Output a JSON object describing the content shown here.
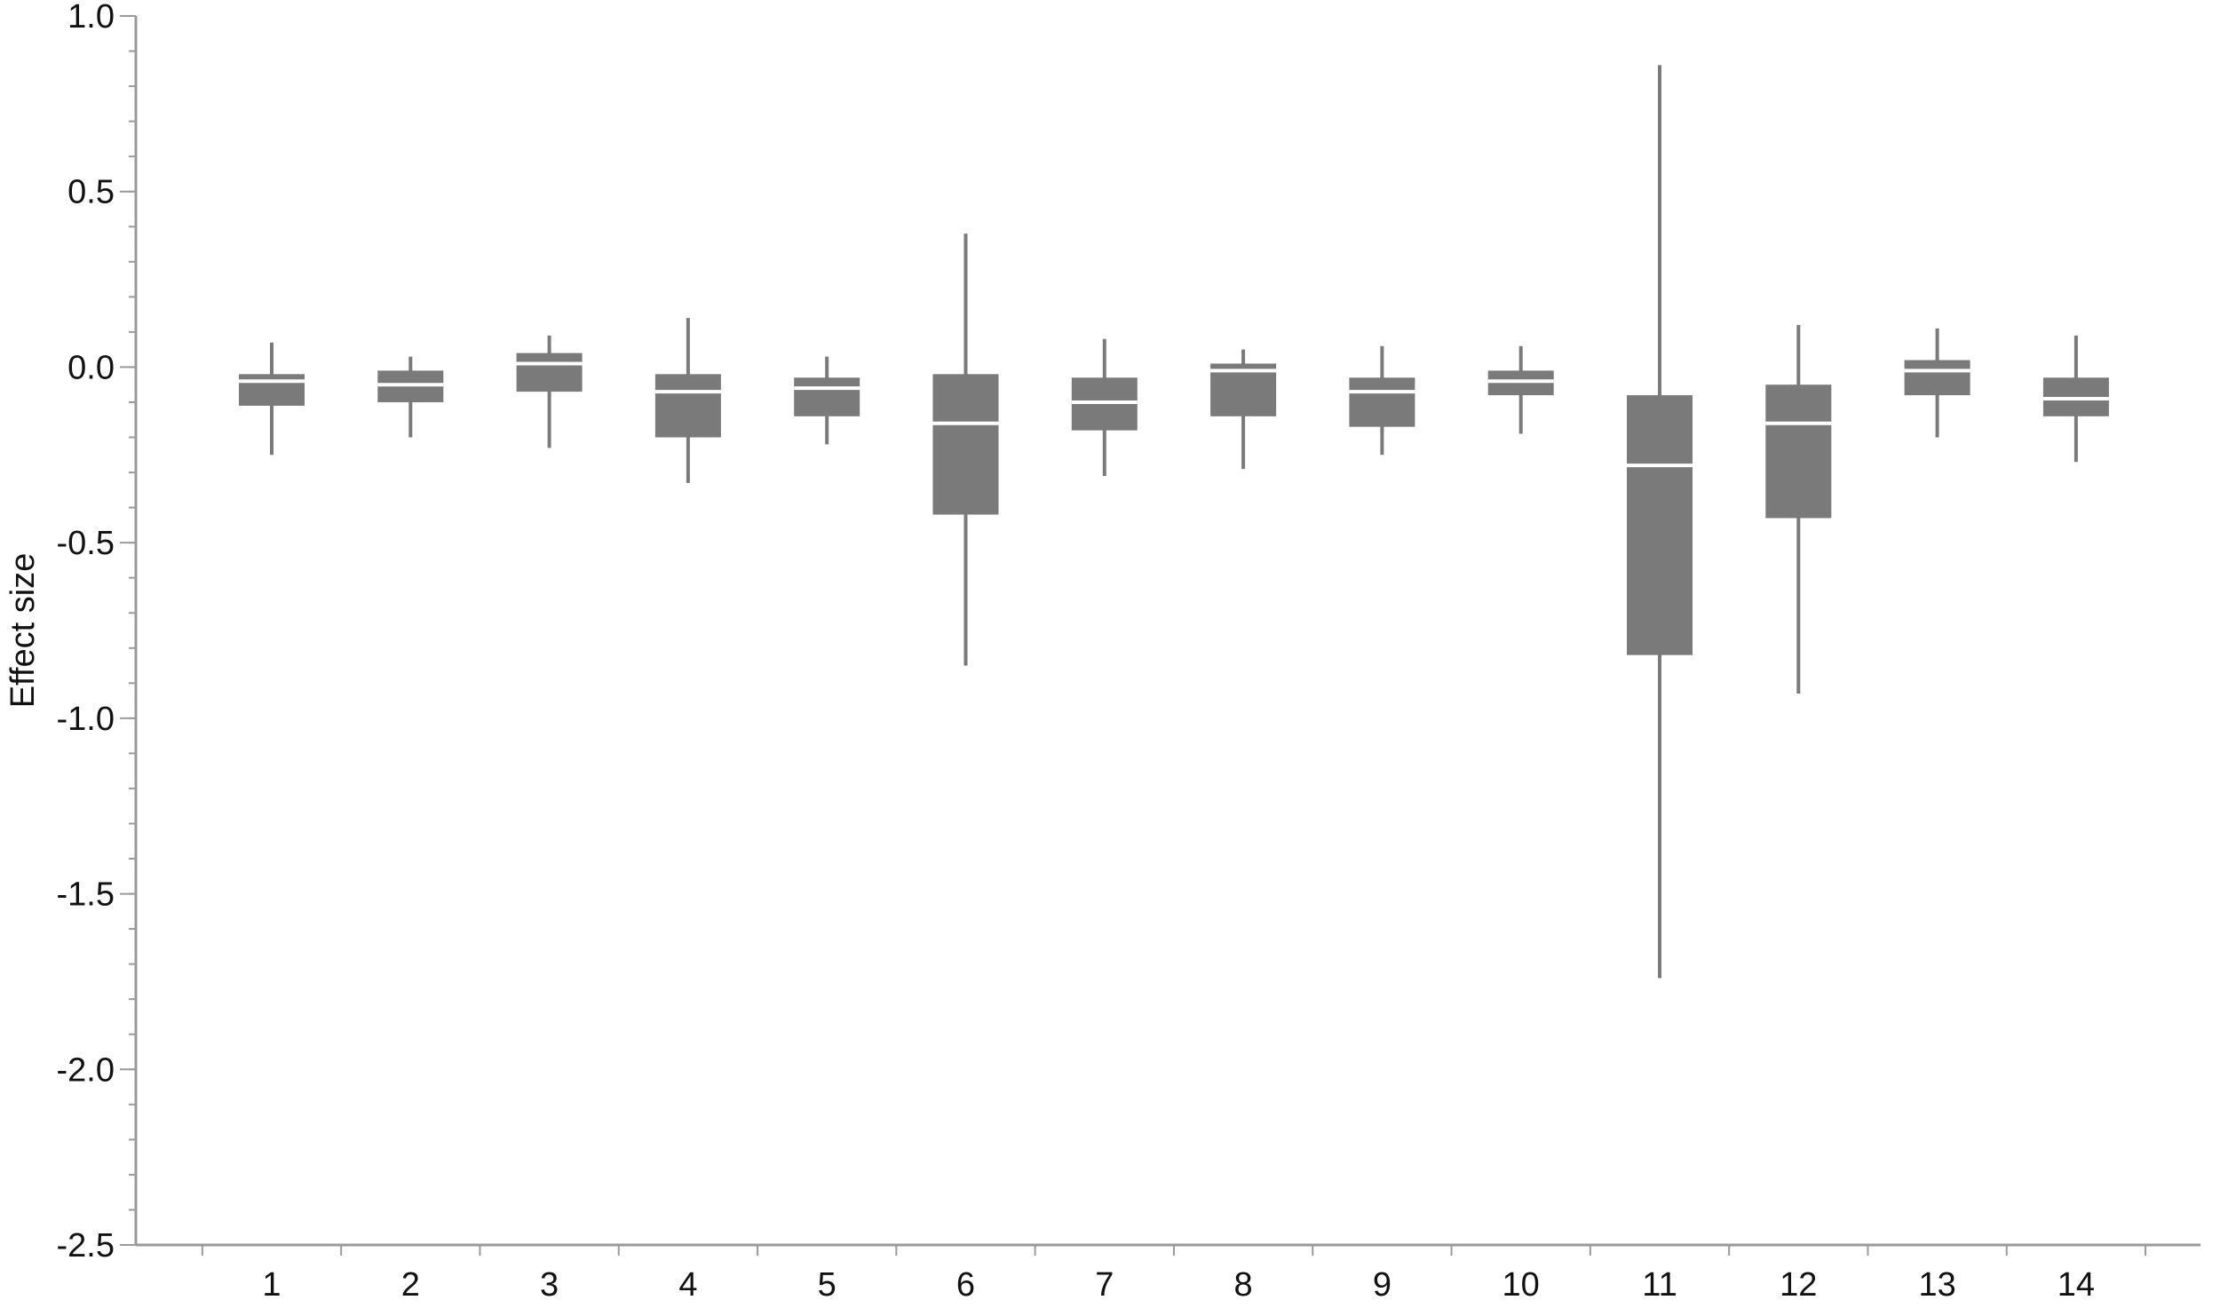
{
  "chart_data": {
    "type": "box",
    "title": "",
    "xlabel": "",
    "ylabel": "Effect size",
    "ylim": [
      -2.5,
      1.0
    ],
    "yticks": [
      1.0,
      0.5,
      0.0,
      -0.5,
      -1.0,
      -1.5,
      -2.0,
      -2.5
    ],
    "ytick_labels": [
      "1.0",
      "0.5",
      "0.0",
      "-0.5",
      "-1.0",
      "-1.5",
      "-2.0",
      "-2.5"
    ],
    "categories": [
      "1",
      "2",
      "3",
      "4",
      "5",
      "6",
      "7",
      "8",
      "9",
      "10",
      "11",
      "12",
      "13",
      "14"
    ],
    "grid": false,
    "colors": {
      "box": "#7a7a7a",
      "whisker": "#7a7a7a",
      "median": "#ffffff",
      "axis": "#9a9a9a"
    },
    "boxes": [
      {
        "min": -0.25,
        "q1": -0.11,
        "median": -0.04,
        "q3": -0.02,
        "max": 0.07
      },
      {
        "min": -0.2,
        "q1": -0.1,
        "median": -0.05,
        "q3": -0.01,
        "max": 0.03
      },
      {
        "min": -0.23,
        "q1": -0.07,
        "median": 0.01,
        "q3": 0.04,
        "max": 0.09
      },
      {
        "min": -0.33,
        "q1": -0.2,
        "median": -0.07,
        "q3": -0.02,
        "max": 0.14
      },
      {
        "min": -0.22,
        "q1": -0.14,
        "median": -0.06,
        "q3": -0.03,
        "max": 0.03
      },
      {
        "min": -0.85,
        "q1": -0.42,
        "median": -0.16,
        "q3": -0.02,
        "max": 0.38
      },
      {
        "min": -0.31,
        "q1": -0.18,
        "median": -0.1,
        "q3": -0.03,
        "max": 0.08
      },
      {
        "min": -0.29,
        "q1": -0.14,
        "median": -0.01,
        "q3": 0.01,
        "max": 0.05
      },
      {
        "min": -0.25,
        "q1": -0.17,
        "median": -0.07,
        "q3": -0.03,
        "max": 0.06
      },
      {
        "min": -0.19,
        "q1": -0.08,
        "median": -0.04,
        "q3": -0.01,
        "max": 0.06
      },
      {
        "min": -1.74,
        "q1": -0.82,
        "median": -0.28,
        "q3": -0.08,
        "max": 0.86
      },
      {
        "min": -0.93,
        "q1": -0.43,
        "median": -0.16,
        "q3": -0.05,
        "max": 0.12
      },
      {
        "min": -0.2,
        "q1": -0.08,
        "median": -0.01,
        "q3": 0.02,
        "max": 0.11
      },
      {
        "min": -0.27,
        "q1": -0.14,
        "median": -0.09,
        "q3": -0.03,
        "max": 0.09
      }
    ]
  }
}
